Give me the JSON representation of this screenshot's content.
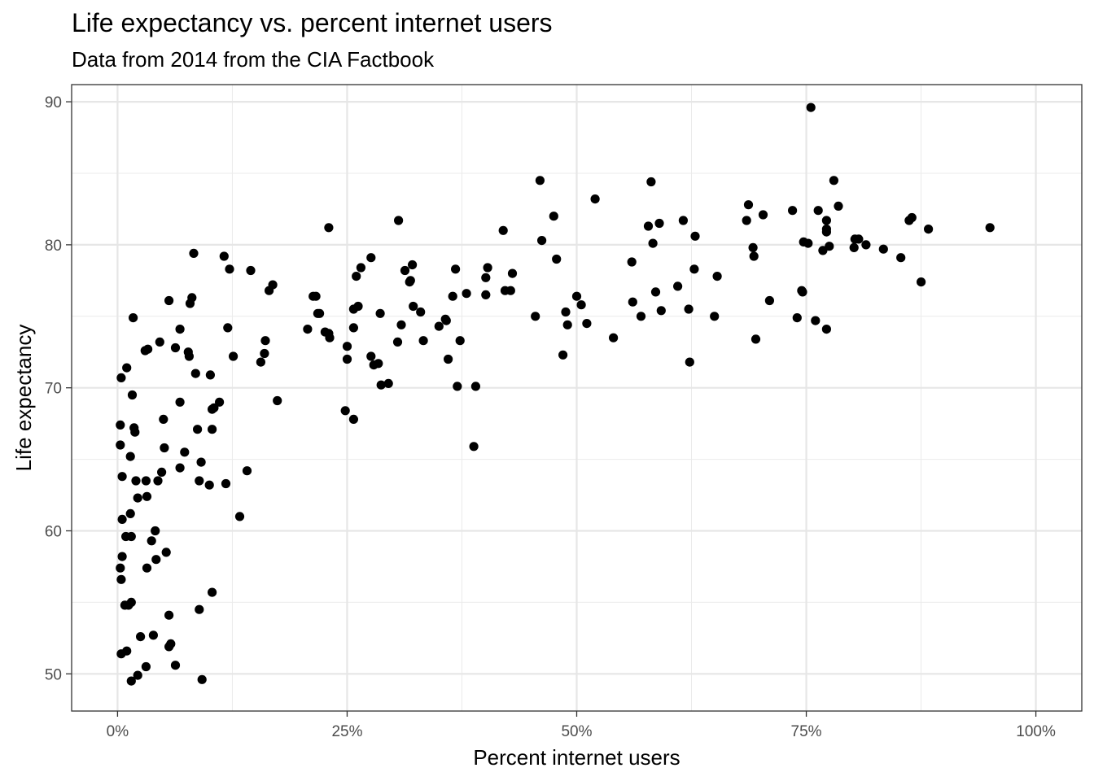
{
  "chart_data": {
    "type": "scatter",
    "title": "Life expectancy vs. percent internet users",
    "subtitle": "Data from 2014 from the CIA Factbook",
    "xlabel": "Percent internet users",
    "ylabel": "Life expectancy",
    "xlim": [
      -0.05,
      1.05
    ],
    "ylim": [
      47.4,
      91.2
    ],
    "x_ticks": [
      0,
      0.25,
      0.5,
      0.75,
      1.0
    ],
    "x_tick_labels": [
      "0%",
      "25%",
      "50%",
      "75%",
      "100%"
    ],
    "y_ticks": [
      50,
      60,
      70,
      80,
      90
    ],
    "y_tick_labels": [
      "50",
      "60",
      "70",
      "80",
      "90"
    ],
    "grid": true,
    "points": [
      [
        0.003,
        67.4
      ],
      [
        0.003,
        66.0
      ],
      [
        0.003,
        57.4
      ],
      [
        0.004,
        56.6
      ],
      [
        0.004,
        70.7
      ],
      [
        0.005,
        63.8
      ],
      [
        0.005,
        60.8
      ],
      [
        0.005,
        58.2
      ],
      [
        0.004,
        51.4
      ],
      [
        0.008,
        54.8
      ],
      [
        0.009,
        59.6
      ],
      [
        0.01,
        71.4
      ],
      [
        0.01,
        51.6
      ],
      [
        0.012,
        54.8
      ],
      [
        0.014,
        65.2
      ],
      [
        0.014,
        61.2
      ],
      [
        0.015,
        59.6
      ],
      [
        0.015,
        55.0
      ],
      [
        0.015,
        49.5
      ],
      [
        0.016,
        69.5
      ],
      [
        0.017,
        74.9
      ],
      [
        0.018,
        67.2
      ],
      [
        0.019,
        66.9
      ],
      [
        0.02,
        63.5
      ],
      [
        0.022,
        62.3
      ],
      [
        0.022,
        49.9
      ],
      [
        0.025,
        52.6
      ],
      [
        0.03,
        72.6
      ],
      [
        0.031,
        63.5
      ],
      [
        0.032,
        62.4
      ],
      [
        0.032,
        57.4
      ],
      [
        0.031,
        50.5
      ],
      [
        0.033,
        72.7
      ],
      [
        0.037,
        59.3
      ],
      [
        0.039,
        52.7
      ],
      [
        0.041,
        60.0
      ],
      [
        0.042,
        58.0
      ],
      [
        0.044,
        63.5
      ],
      [
        0.046,
        73.2
      ],
      [
        0.048,
        64.1
      ],
      [
        0.05,
        67.8
      ],
      [
        0.051,
        65.8
      ],
      [
        0.053,
        58.5
      ],
      [
        0.056,
        76.1
      ],
      [
        0.056,
        54.1
      ],
      [
        0.056,
        51.9
      ],
      [
        0.058,
        52.1
      ],
      [
        0.063,
        72.8
      ],
      [
        0.063,
        50.6
      ],
      [
        0.068,
        74.1
      ],
      [
        0.068,
        69.0
      ],
      [
        0.068,
        64.4
      ],
      [
        0.073,
        65.5
      ],
      [
        0.077,
        72.5
      ],
      [
        0.078,
        72.2
      ],
      [
        0.079,
        75.9
      ],
      [
        0.081,
        76.3
      ],
      [
        0.083,
        79.4
      ],
      [
        0.085,
        71.0
      ],
      [
        0.087,
        67.1
      ],
      [
        0.089,
        63.5
      ],
      [
        0.089,
        54.5
      ],
      [
        0.091,
        64.8
      ],
      [
        0.092,
        49.6
      ],
      [
        0.1,
        63.2
      ],
      [
        0.101,
        70.9
      ],
      [
        0.103,
        68.5
      ],
      [
        0.103,
        67.1
      ],
      [
        0.103,
        55.7
      ],
      [
        0.105,
        68.6
      ],
      [
        0.111,
        69.0
      ],
      [
        0.116,
        79.2
      ],
      [
        0.118,
        63.3
      ],
      [
        0.12,
        74.2
      ],
      [
        0.122,
        78.3
      ],
      [
        0.126,
        72.2
      ],
      [
        0.133,
        61.0
      ],
      [
        0.141,
        64.2
      ],
      [
        0.145,
        78.2
      ],
      [
        0.156,
        71.8
      ],
      [
        0.16,
        72.4
      ],
      [
        0.161,
        73.3
      ],
      [
        0.165,
        76.8
      ],
      [
        0.169,
        77.2
      ],
      [
        0.174,
        69.1
      ],
      [
        0.207,
        74.1
      ],
      [
        0.213,
        76.4
      ],
      [
        0.216,
        76.4
      ],
      [
        0.218,
        75.2
      ],
      [
        0.22,
        75.2
      ],
      [
        0.226,
        73.9
      ],
      [
        0.23,
        81.2
      ],
      [
        0.23,
        73.8
      ],
      [
        0.231,
        73.5
      ],
      [
        0.25,
        72.9
      ],
      [
        0.25,
        72.0
      ],
      [
        0.248,
        68.4
      ],
      [
        0.257,
        75.5
      ],
      [
        0.257,
        74.2
      ],
      [
        0.257,
        67.8
      ],
      [
        0.26,
        77.8
      ],
      [
        0.262,
        75.7
      ],
      [
        0.265,
        78.4
      ],
      [
        0.276,
        79.1
      ],
      [
        0.276,
        72.2
      ],
      [
        0.279,
        71.6
      ],
      [
        0.284,
        71.7
      ],
      [
        0.286,
        75.2
      ],
      [
        0.287,
        70.2
      ],
      [
        0.295,
        70.3
      ],
      [
        0.305,
        73.2
      ],
      [
        0.306,
        81.7
      ],
      [
        0.309,
        74.4
      ],
      [
        0.313,
        78.2
      ],
      [
        0.318,
        77.4
      ],
      [
        0.319,
        77.5
      ],
      [
        0.321,
        78.6
      ],
      [
        0.322,
        75.7
      ],
      [
        0.33,
        75.3
      ],
      [
        0.333,
        73.3
      ],
      [
        0.35,
        74.3
      ],
      [
        0.357,
        74.8
      ],
      [
        0.358,
        74.7
      ],
      [
        0.36,
        72.0
      ],
      [
        0.365,
        76.4
      ],
      [
        0.368,
        78.3
      ],
      [
        0.37,
        70.1
      ],
      [
        0.373,
        73.3
      ],
      [
        0.38,
        76.6
      ],
      [
        0.388,
        65.9
      ],
      [
        0.39,
        70.1
      ],
      [
        0.401,
        76.5
      ],
      [
        0.401,
        77.7
      ],
      [
        0.403,
        78.4
      ],
      [
        0.42,
        81.0
      ],
      [
        0.422,
        76.8
      ],
      [
        0.428,
        76.8
      ],
      [
        0.43,
        78.0
      ],
      [
        0.455,
        75.0
      ],
      [
        0.46,
        84.5
      ],
      [
        0.462,
        80.3
      ],
      [
        0.475,
        82.0
      ],
      [
        0.478,
        79.0
      ],
      [
        0.485,
        72.3
      ],
      [
        0.488,
        75.3
      ],
      [
        0.49,
        74.4
      ],
      [
        0.5,
        76.4
      ],
      [
        0.505,
        75.8
      ],
      [
        0.511,
        74.5
      ],
      [
        0.52,
        83.2
      ],
      [
        0.54,
        73.5
      ],
      [
        0.56,
        78.8
      ],
      [
        0.561,
        76.0
      ],
      [
        0.57,
        75.0
      ],
      [
        0.578,
        81.3
      ],
      [
        0.581,
        84.4
      ],
      [
        0.583,
        80.1
      ],
      [
        0.586,
        76.7
      ],
      [
        0.59,
        81.5
      ],
      [
        0.592,
        75.4
      ],
      [
        0.61,
        77.1
      ],
      [
        0.616,
        81.7
      ],
      [
        0.622,
        75.5
      ],
      [
        0.623,
        71.8
      ],
      [
        0.628,
        78.3
      ],
      [
        0.629,
        80.6
      ],
      [
        0.65,
        75.0
      ],
      [
        0.653,
        77.8
      ],
      [
        0.685,
        81.7
      ],
      [
        0.687,
        82.8
      ],
      [
        0.692,
        79.8
      ],
      [
        0.693,
        79.2
      ],
      [
        0.695,
        73.4
      ],
      [
        0.703,
        82.1
      ],
      [
        0.71,
        76.1
      ],
      [
        0.735,
        82.4
      ],
      [
        0.74,
        74.9
      ],
      [
        0.745,
        76.8
      ],
      [
        0.746,
        76.7
      ],
      [
        0.747,
        80.2
      ],
      [
        0.752,
        80.1
      ],
      [
        0.755,
        89.6
      ],
      [
        0.76,
        74.7
      ],
      [
        0.763,
        82.4
      ],
      [
        0.768,
        79.6
      ],
      [
        0.772,
        81.7
      ],
      [
        0.772,
        81.1
      ],
      [
        0.772,
        80.9
      ],
      [
        0.772,
        74.1
      ],
      [
        0.775,
        79.9
      ],
      [
        0.78,
        84.5
      ],
      [
        0.785,
        82.7
      ],
      [
        0.802,
        79.8
      ],
      [
        0.803,
        80.4
      ],
      [
        0.807,
        80.4
      ],
      [
        0.815,
        80.0
      ],
      [
        0.834,
        79.7
      ],
      [
        0.853,
        79.1
      ],
      [
        0.862,
        81.7
      ],
      [
        0.865,
        81.9
      ],
      [
        0.875,
        77.4
      ],
      [
        0.883,
        81.1
      ],
      [
        0.95,
        81.2
      ]
    ]
  }
}
